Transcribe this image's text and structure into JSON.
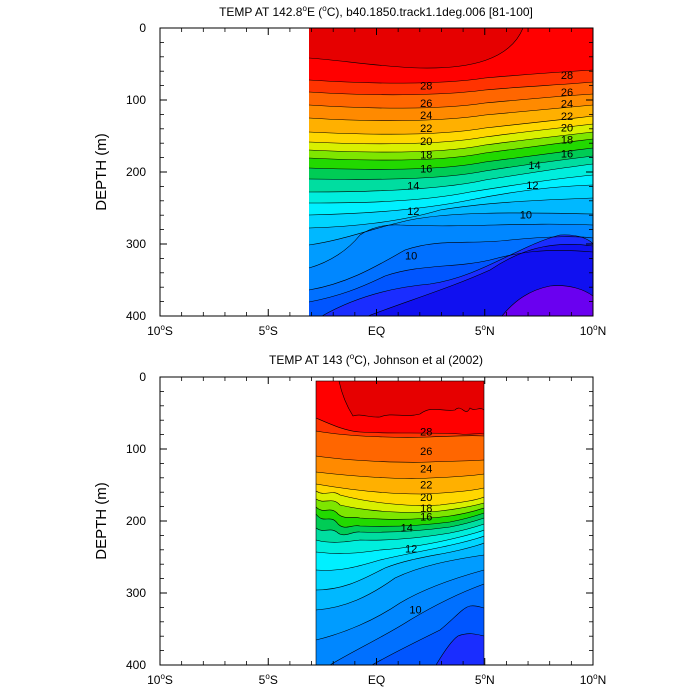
{
  "chart_data": [
    {
      "type": "heatmap",
      "title": "TEMP AT 142.8°E (°C), b40.1850.track1.1deg.006 [81-100]",
      "title_parts": {
        "pre": "TEMP AT 142.8",
        "sup1": "o",
        "mid": "E (",
        "sup2": "o",
        "post": "C), b40.1850.track1.1deg.006 [81-100]"
      },
      "xlabel": "",
      "ylabel": "DEPTH (m)",
      "xlim": [
        -10,
        10
      ],
      "ylim": [
        400,
        0
      ],
      "data_xrange": [
        -2.7,
        10
      ],
      "x_ticks": [
        {
          "value": -10,
          "num": "10",
          "sup": "o",
          "hemi": "S"
        },
        {
          "value": -5,
          "num": "5",
          "sup": "o",
          "hemi": "S"
        },
        {
          "value": 0,
          "num": "EQ",
          "sup": "",
          "hemi": ""
        },
        {
          "value": 5,
          "num": "5",
          "sup": "o",
          "hemi": "N"
        },
        {
          "value": 10,
          "num": "10",
          "sup": "o",
          "hemi": "N"
        }
      ],
      "y_ticks": [
        0,
        100,
        200,
        300,
        400
      ],
      "contour_labels": [
        {
          "text": "28",
          "x": 2.3,
          "y": 80
        },
        {
          "text": "28",
          "x": 8.8,
          "y": 65
        },
        {
          "text": "26",
          "x": 2.3,
          "y": 104
        },
        {
          "text": "26",
          "x": 8.8,
          "y": 89
        },
        {
          "text": "24",
          "x": 2.3,
          "y": 121
        },
        {
          "text": "24",
          "x": 8.8,
          "y": 105
        },
        {
          "text": "22",
          "x": 2.3,
          "y": 139
        },
        {
          "text": "22",
          "x": 8.8,
          "y": 122
        },
        {
          "text": "20",
          "x": 2.3,
          "y": 157
        },
        {
          "text": "20",
          "x": 8.8,
          "y": 138
        },
        {
          "text": "18",
          "x": 2.3,
          "y": 176
        },
        {
          "text": "18",
          "x": 8.8,
          "y": 155
        },
        {
          "text": "16",
          "x": 2.3,
          "y": 195
        },
        {
          "text": "16",
          "x": 8.8,
          "y": 174
        },
        {
          "text": "14",
          "x": 1.7,
          "y": 219
        },
        {
          "text": "14",
          "x": 7.3,
          "y": 190
        },
        {
          "text": "12",
          "x": 1.7,
          "y": 254
        },
        {
          "text": "12",
          "x": 7.2,
          "y": 218
        },
        {
          "text": "10",
          "x": 1.6,
          "y": 316
        },
        {
          "text": "10",
          "x": 6.9,
          "y": 259
        }
      ]
    },
    {
      "type": "heatmap",
      "title": "TEMP AT 143 (°C), Johnson et al (2002)",
      "title_parts": {
        "pre": "TEMP AT 143 (",
        "sup1": "o",
        "mid": "C), Johnson et al (2002)",
        "sup2": "",
        "post": ""
      },
      "xlabel": "",
      "ylabel": "DEPTH (m)",
      "xlim": [
        -10,
        10
      ],
      "ylim": [
        400,
        0
      ],
      "data_xrange": [
        -2.4,
        5
      ],
      "x_ticks": [
        {
          "value": -10,
          "num": "10",
          "sup": "o",
          "hemi": "S"
        },
        {
          "value": -5,
          "num": "5",
          "sup": "o",
          "hemi": "S"
        },
        {
          "value": 0,
          "num": "EQ",
          "sup": "",
          "hemi": ""
        },
        {
          "value": 5,
          "num": "5",
          "sup": "o",
          "hemi": "N"
        },
        {
          "value": 10,
          "num": "10",
          "sup": "o",
          "hemi": "N"
        }
      ],
      "y_ticks": [
        0,
        100,
        200,
        300,
        400
      ],
      "contour_labels": [
        {
          "text": "28",
          "x": 2.3,
          "y": 76
        },
        {
          "text": "26",
          "x": 2.3,
          "y": 103
        },
        {
          "text": "24",
          "x": 2.3,
          "y": 127
        },
        {
          "text": "22",
          "x": 2.3,
          "y": 149
        },
        {
          "text": "20",
          "x": 2.3,
          "y": 167
        },
        {
          "text": "18",
          "x": 2.3,
          "y": 182
        },
        {
          "text": "16",
          "x": 2.3,
          "y": 194
        },
        {
          "text": "14",
          "x": 1.4,
          "y": 209
        },
        {
          "text": "12",
          "x": 1.6,
          "y": 238
        },
        {
          "text": "10",
          "x": 1.8,
          "y": 323
        }
      ]
    }
  ]
}
